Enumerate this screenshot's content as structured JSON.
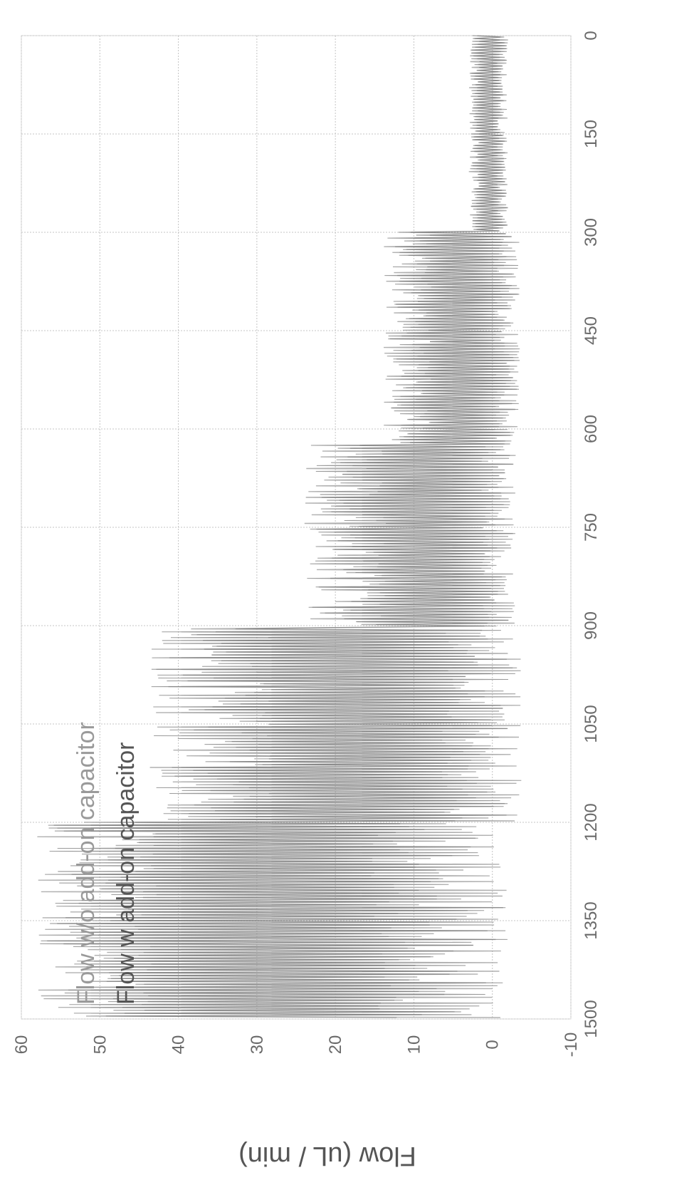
{
  "chart_data": {
    "type": "line",
    "orientation": "rotated-90",
    "title": "",
    "xlabel": "",
    "ylabel": "Flow (uL / min)",
    "xlim": [
      0,
      1500
    ],
    "ylim": [
      -10,
      60
    ],
    "x_ticks": [
      "0",
      "150",
      "300",
      "450",
      "600",
      "750",
      "900",
      "1050",
      "1200",
      "1350",
      "1500"
    ],
    "y_ticks": [
      "-10",
      "0",
      "10",
      "20",
      "30",
      "40",
      "50",
      "60"
    ],
    "grid": true,
    "legend_position": "inside-upper-left",
    "series": [
      {
        "name": "Flow w/o add-on capacitor",
        "color": "#a8a8a8",
        "segments": [
          {
            "x": [
              0,
              300
            ],
            "center": 0.5,
            "min": -2,
            "max": 3
          },
          {
            "x": [
              300,
              625
            ],
            "center": 2.5,
            "min": -3.5,
            "max": 14
          },
          {
            "x": [
              625,
              905
            ],
            "center": 5,
            "min": -3,
            "max": 24
          },
          {
            "x": [
              905,
              1200
            ],
            "center": 15,
            "min": -4,
            "max": 44
          },
          {
            "x": [
              1200,
              1500
            ],
            "center": 30,
            "min": -2,
            "max": 58
          }
        ]
      },
      {
        "name": "Flow w add-on capacitor",
        "color": "#7a7a7a",
        "segments": [
          {
            "x": [
              0,
              300
            ],
            "center": 0.5,
            "min": -2,
            "max": 3
          },
          {
            "x": [
              300,
              625
            ],
            "center": 2.5,
            "min": -3.5,
            "max": 14
          },
          {
            "x": [
              625,
              905
            ],
            "center": 5,
            "min": -3,
            "max": 24
          },
          {
            "x": [
              905,
              1200
            ],
            "center": 15,
            "min": -4,
            "max": 44
          },
          {
            "x": [
              1200,
              1500
            ],
            "center": 30,
            "min": -2,
            "max": 58
          }
        ]
      }
    ]
  }
}
